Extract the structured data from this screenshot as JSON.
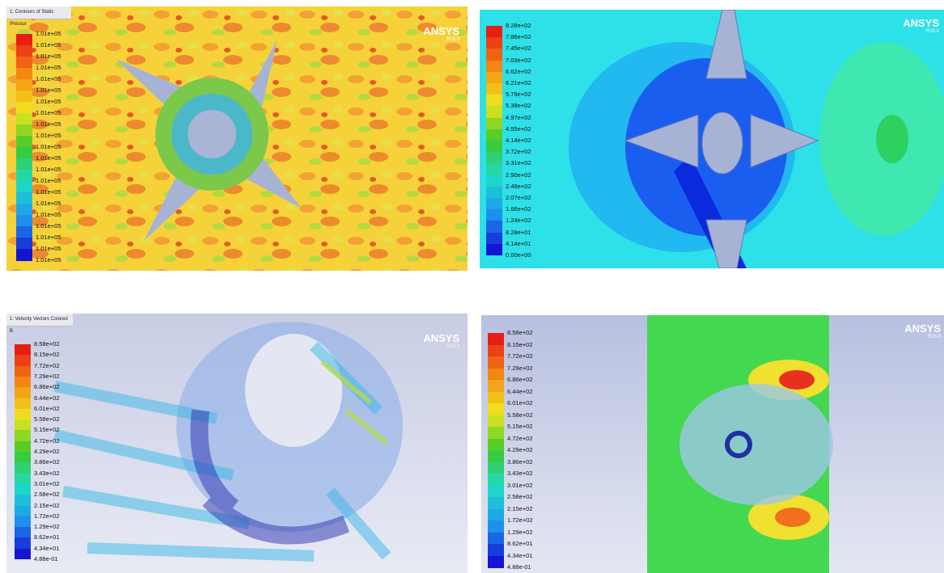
{
  "panels": [
    {
      "tab": "1: Contours of Static Pressur",
      "logo": "ANSYS",
      "version": "R15.0",
      "legend": [
        "1.01e+05",
        "1.01e+05",
        "1.01e+05",
        "1.01e+05",
        "1.01e+05",
        "1.01e+05",
        "1.01e+05",
        "1.01e+05",
        "1.01e+05",
        "1.01e+05",
        "1.01e+05",
        "1.01e+05",
        "1.01e+05",
        "1.01e+05",
        "1.01e+05",
        "1.01e+05",
        "1.01e+05",
        "1.01e+05",
        "1.01e+05",
        "1.01e+05",
        "1.01e+05"
      ]
    },
    {
      "logo": "ANSYS",
      "version": "R15.0",
      "legend": [
        "8.28e+02",
        "7.86e+02",
        "7.45e+02",
        "7.03e+02",
        "6.62e+02",
        "6.21e+02",
        "5.79e+02",
        "5.38e+02",
        "4.97e+02",
        "4.55e+02",
        "4.14e+02",
        "3.72e+02",
        "3.31e+02",
        "2.90e+02",
        "2.48e+02",
        "2.07e+02",
        "1.66e+02",
        "1.24e+02",
        "8.28e+01",
        "4.14e+01",
        "0.00e+00"
      ]
    },
    {
      "tab": "1: Velocity Vectors Colored B",
      "logo": "ANSYS",
      "version": "R15.0",
      "legend": [
        "8.58e+02",
        "8.15e+02",
        "7.72e+02",
        "7.29e+02",
        "6.86e+02",
        "6.44e+02",
        "6.01e+02",
        "5.58e+02",
        "5.15e+02",
        "4.72e+02",
        "4.29e+02",
        "3.86e+02",
        "3.43e+02",
        "3.01e+02",
        "2.58e+02",
        "2.15e+02",
        "1.72e+02",
        "1.29e+02",
        "8.62e+01",
        "4.34e+01",
        "4.88e-01"
      ]
    },
    {
      "logo": "ANSYS",
      "version": "R15.0",
      "legend": [
        "8.58e+02",
        "8.15e+02",
        "7.72e+02",
        "7.29e+02",
        "6.86e+02",
        "6.44e+02",
        "6.01e+02",
        "5.58e+02",
        "5.15e+02",
        "4.72e+02",
        "4.29e+02",
        "3.86e+02",
        "3.43e+02",
        "3.01e+02",
        "2.58e+02",
        "2.15e+02",
        "1.72e+02",
        "1.29e+02",
        "8.62e+01",
        "4.34e+01",
        "4.88e-01"
      ]
    }
  ]
}
